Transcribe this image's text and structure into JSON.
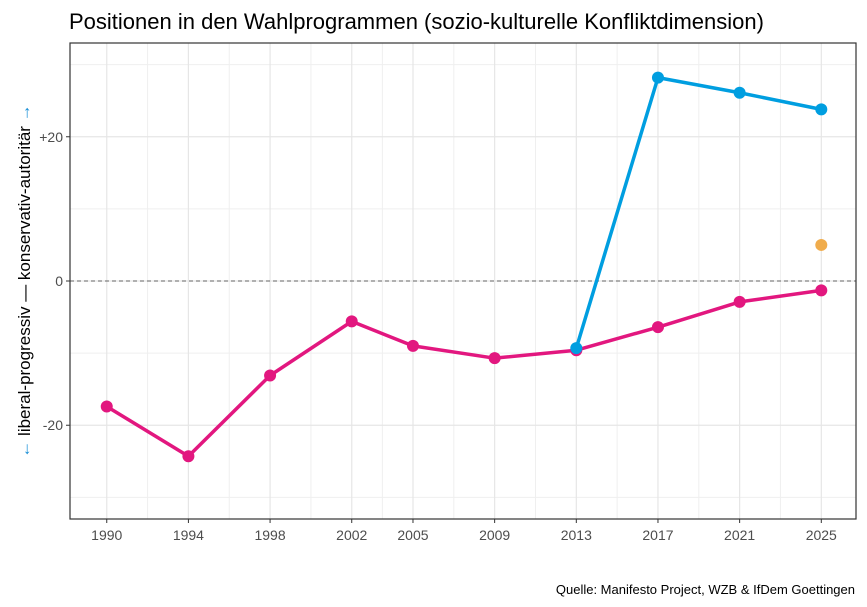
{
  "chart_data": {
    "type": "line",
    "title": "Positionen in den Wahlprogrammen (sozio-kulturelle Konfliktdimension)",
    "ylabel": {
      "arrow_down": "←",
      "left": "liberal-progressiv",
      "dash": "—",
      "right": "konservativ-autoritär",
      "arrow_up": "→"
    },
    "xlabel": "",
    "caption": "Quelle: Manifesto Project, WZB & IfDem Goettingen",
    "x_ticks": [
      1990,
      1994,
      1998,
      2002,
      2005,
      2009,
      2013,
      2017,
      2021,
      2025
    ],
    "y_ticks": [
      {
        "value": 20,
        "label": "+20"
      },
      {
        "value": 0,
        "label": "0"
      },
      {
        "value": -20,
        "label": "-20"
      }
    ],
    "y_minor": [
      -30,
      -10,
      10,
      30
    ],
    "xlim": [
      1988.2,
      2026.7
    ],
    "ylim": [
      -33,
      33
    ],
    "grid": true,
    "reference_line": 0,
    "series": [
      {
        "name": "pink",
        "color": "#E2177F",
        "x": [
          1990,
          1994,
          1998,
          2002,
          2005,
          2009,
          2013,
          2017,
          2021,
          2025
        ],
        "values": [
          -17.4,
          -24.3,
          -13.1,
          -5.6,
          -9.0,
          -10.7,
          -9.6,
          -6.4,
          -2.9,
          -1.3
        ]
      },
      {
        "name": "blue",
        "color": "#009EE0",
        "x": [
          2013,
          2017,
          2021,
          2025
        ],
        "values": [
          -9.3,
          28.2,
          26.1,
          23.8
        ]
      },
      {
        "name": "orange",
        "color": "#F0AC4C",
        "x": [
          2025
        ],
        "values": [
          5.0
        ]
      }
    ]
  }
}
